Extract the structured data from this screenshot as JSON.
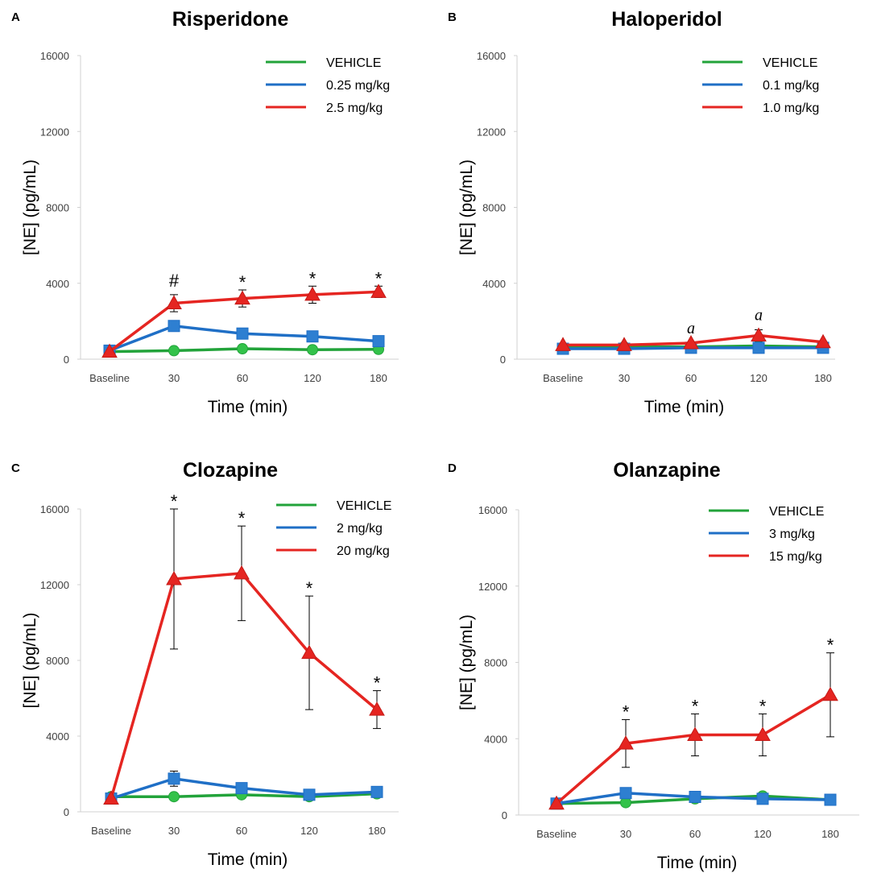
{
  "chart_data": [
    {
      "type": "line",
      "panel": "A",
      "title": "Risperidone",
      "xlabel": "Time (min)",
      "ylabel": "[NE] (pg/mL)",
      "ylim": [
        0,
        16000
      ],
      "yticks": [
        "0",
        "4000",
        "8000",
        "12000",
        "16000"
      ],
      "categories": [
        "Baseline",
        "30",
        "60",
        "120",
        "180"
      ],
      "series": [
        {
          "name": "VEHICLE",
          "color": "#22a33a",
          "marker": "circle",
          "values": [
            400,
            450,
            550,
            500,
            520
          ],
          "errors": [
            0,
            0,
            0,
            0,
            0
          ]
        },
        {
          "name": "0.25 mg/kg",
          "color": "#1f6fc6",
          "marker": "square",
          "values": [
            450,
            1750,
            1350,
            1200,
            950
          ],
          "errors": [
            0,
            0,
            0,
            0,
            0
          ]
        },
        {
          "name": "2.5 mg/kg",
          "color": "#e52521",
          "marker": "triangle",
          "values": [
            400,
            2950,
            3200,
            3400,
            3550
          ],
          "errors": [
            0,
            450,
            450,
            450,
            300
          ]
        }
      ],
      "annotations": [
        {
          "category": "30",
          "text": "#"
        },
        {
          "category": "60",
          "text": "*"
        },
        {
          "category": "120",
          "text": "*"
        },
        {
          "category": "180",
          "text": "*"
        }
      ]
    },
    {
      "type": "line",
      "panel": "B",
      "title": "Haloperidol",
      "xlabel": "Time (min)",
      "ylabel": "[NE] (pg/mL)",
      "ylim": [
        0,
        16000
      ],
      "yticks": [
        "0",
        "4000",
        "8000",
        "12000",
        "16000"
      ],
      "categories": [
        "Baseline",
        "30",
        "60",
        "120",
        "180"
      ],
      "series": [
        {
          "name": "VEHICLE",
          "color": "#22a33a",
          "marker": "circle",
          "values": [
            600,
            650,
            650,
            700,
            650
          ],
          "errors": [
            0,
            0,
            0,
            0,
            0
          ]
        },
        {
          "name": "0.1 mg/kg",
          "color": "#1f6fc6",
          "marker": "square",
          "values": [
            550,
            550,
            600,
            600,
            600
          ],
          "errors": [
            0,
            0,
            0,
            0,
            0
          ]
        },
        {
          "name": "1.0 mg/kg",
          "color": "#e52521",
          "marker": "triangle",
          "values": [
            750,
            750,
            850,
            1250,
            900
          ],
          "errors": [
            0,
            0,
            0,
            300,
            0
          ]
        }
      ],
      "annotations": [
        {
          "category": "60",
          "text": "a"
        },
        {
          "category": "120",
          "text": "a"
        }
      ]
    },
    {
      "type": "line",
      "panel": "C",
      "title": "Clozapine",
      "xlabel": "Time (min)",
      "ylabel": "[NE] (pg/mL)",
      "ylim": [
        0,
        16000
      ],
      "yticks": [
        "0",
        "4000",
        "8000",
        "12000",
        "16000"
      ],
      "categories": [
        "Baseline",
        "30",
        "60",
        "120",
        "180"
      ],
      "series": [
        {
          "name": "VEHICLE",
          "color": "#22a33a",
          "marker": "circle",
          "values": [
            800,
            800,
            900,
            800,
            950
          ],
          "errors": [
            0,
            0,
            0,
            0,
            0
          ]
        },
        {
          "name": "2 mg/kg",
          "color": "#1f6fc6",
          "marker": "square",
          "values": [
            700,
            1750,
            1250,
            900,
            1050
          ],
          "errors": [
            0,
            400,
            0,
            0,
            0
          ]
        },
        {
          "name": "20 mg/kg",
          "color": "#e52521",
          "marker": "triangle",
          "values": [
            700,
            12300,
            12600,
            8400,
            5400
          ],
          "errors": [
            0,
            3700,
            2500,
            3000,
            1000
          ]
        }
      ],
      "annotations": [
        {
          "category": "30",
          "text": "*"
        },
        {
          "category": "60",
          "text": "*"
        },
        {
          "category": "120",
          "text": "*"
        },
        {
          "category": "180",
          "text": "*"
        }
      ]
    },
    {
      "type": "line",
      "panel": "D",
      "title": "Olanzapine",
      "xlabel": "Time (min)",
      "ylabel": "[NE] (pg/mL)",
      "ylim": [
        0,
        16000
      ],
      "yticks": [
        "0",
        "4000",
        "8000",
        "12000",
        "16000"
      ],
      "categories": [
        "Baseline",
        "30",
        "60",
        "120",
        "180"
      ],
      "series": [
        {
          "name": "VEHICLE",
          "color": "#22a33a",
          "marker": "circle",
          "values": [
            600,
            650,
            850,
            1000,
            800
          ],
          "errors": [
            0,
            0,
            0,
            0,
            0
          ]
        },
        {
          "name": "3 mg/kg",
          "color": "#1f6fc6",
          "marker": "square",
          "values": [
            600,
            1150,
            950,
            850,
            800
          ],
          "errors": [
            0,
            0,
            0,
            0,
            0
          ]
        },
        {
          "name": "15 mg/kg",
          "color": "#e52521",
          "marker": "triangle",
          "values": [
            600,
            3750,
            4200,
            4200,
            6300
          ],
          "errors": [
            0,
            1250,
            1100,
            1100,
            2200
          ]
        }
      ],
      "annotations": [
        {
          "category": "30",
          "text": "*"
        },
        {
          "category": "60",
          "text": "*"
        },
        {
          "category": "120",
          "text": "*"
        },
        {
          "category": "180",
          "text": "*"
        }
      ]
    }
  ]
}
